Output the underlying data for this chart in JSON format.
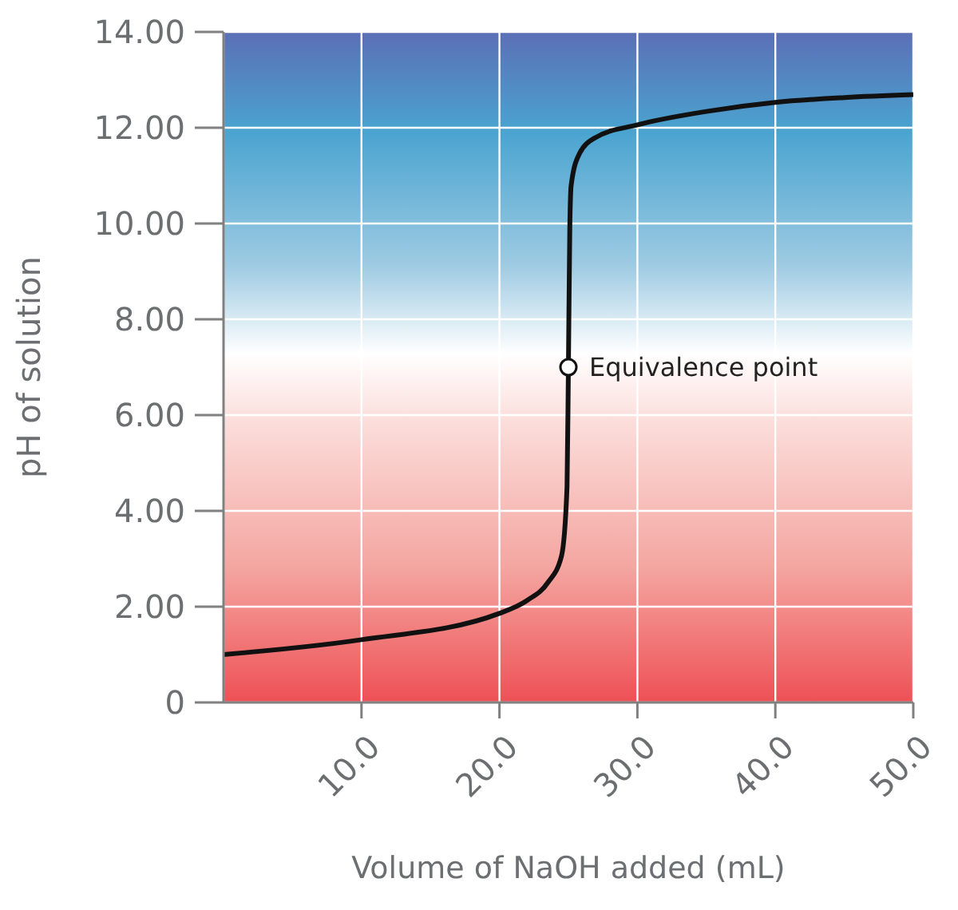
{
  "chart_data": {
    "type": "line",
    "xlabel": "Volume of NaOH added (mL)",
    "ylabel": "pH of solution",
    "x": [
      0,
      10,
      20,
      22,
      23.5,
      24.5,
      24.9,
      25,
      25.1,
      25.2,
      25.8,
      27,
      30,
      35,
      40,
      45,
      50
    ],
    "series": [
      {
        "color": "#111111",
        "values": [
          1.0,
          1.31,
          1.86,
          2.13,
          2.5,
          3.06,
          4.5,
          7.0,
          9.9,
          10.8,
          11.46,
          11.8,
          12.06,
          12.34,
          12.53,
          12.63,
          12.69
        ]
      }
    ],
    "xlim": [
      0,
      50
    ],
    "xticks": [
      {
        "value": 10,
        "label": "10.0"
      },
      {
        "value": 20,
        "label": "20.0"
      },
      {
        "value": 30,
        "label": "30.0"
      },
      {
        "value": 40,
        "label": "40.0"
      },
      {
        "value": 50,
        "label": "50.0"
      }
    ],
    "ylim": [
      0,
      14
    ],
    "yticks": [
      0,
      {
        "value": 2,
        "label": "2.00"
      },
      {
        "value": 4,
        "label": "4.00"
      },
      {
        "value": 6,
        "label": "6.00"
      },
      {
        "value": 8,
        "label": "8.00"
      },
      {
        "value": 10,
        "label": "10.00"
      },
      {
        "value": 12,
        "label": "12.00"
      },
      {
        "value": 14,
        "label": "14.00"
      }
    ],
    "grid": true,
    "marker": "none",
    "line_style": "solid",
    "legend": false,
    "annotations": [
      {
        "text": "Equivalence point",
        "x": 25,
        "y": 7.0
      }
    ]
  }
}
